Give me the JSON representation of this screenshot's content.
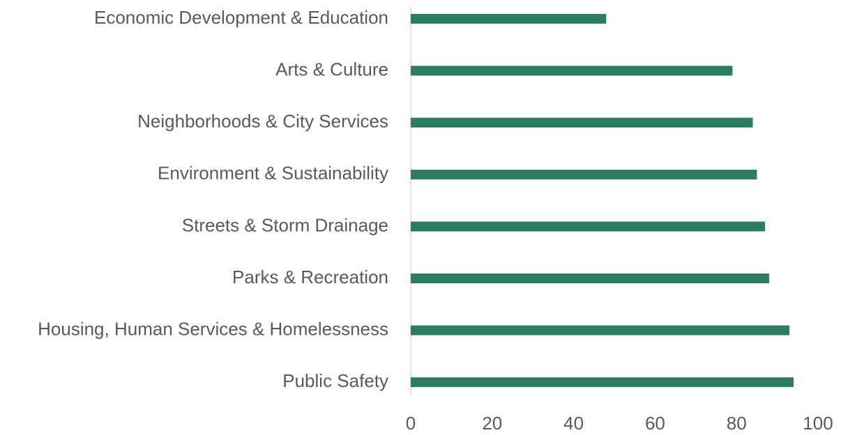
{
  "chart_data": {
    "type": "barh",
    "categories": [
      "Economic Development & Education",
      "Arts & Culture",
      "Neighborhoods & City Services",
      "Environment & Sustainability",
      "Streets & Storm Drainage",
      "Parks & Recreation",
      "Housing, Human Services & Homelessness",
      "Public Safety"
    ],
    "values": [
      48,
      79,
      84,
      85,
      87,
      88,
      93,
      94
    ],
    "color": "#2a7d5f",
    "xlim": [
      0,
      100
    ],
    "xticks": [
      0,
      20,
      40,
      60,
      80,
      100
    ],
    "grid": false
  }
}
